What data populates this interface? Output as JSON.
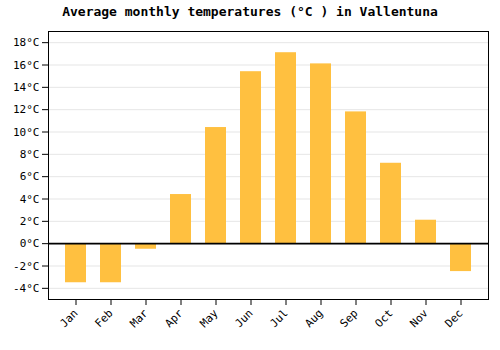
{
  "chart_data": {
    "type": "bar",
    "title": "Average monthly temperatures (°C ) in Vallentuna",
    "categories": [
      "Jan",
      "Feb",
      "Mar",
      "Apr",
      "May",
      "Jun",
      "Jul",
      "Aug",
      "Sep",
      "Oct",
      "Nov",
      "Dec"
    ],
    "values": [
      -3.5,
      -3.5,
      -0.5,
      4.4,
      10.4,
      15.4,
      17.1,
      16.1,
      11.8,
      7.2,
      2.1,
      -2.5
    ],
    "color": "#FFC040",
    "ylim": [
      -5,
      19
    ],
    "yticks": [
      {
        "value": -4,
        "label": "-4°C"
      },
      {
        "value": -2,
        "label": "-2°C"
      },
      {
        "value": 0,
        "label": "0°C"
      },
      {
        "value": 2,
        "label": "2°C"
      },
      {
        "value": 4,
        "label": "4°C"
      },
      {
        "value": 6,
        "label": "6°C"
      },
      {
        "value": 8,
        "label": "8°C"
      },
      {
        "value": 10,
        "label": "10°C"
      },
      {
        "value": 12,
        "label": "12°C"
      },
      {
        "value": 14,
        "label": "14°C"
      },
      {
        "value": 16,
        "label": "16°C"
      },
      {
        "value": 18,
        "label": "18°C"
      }
    ],
    "grid": true
  }
}
